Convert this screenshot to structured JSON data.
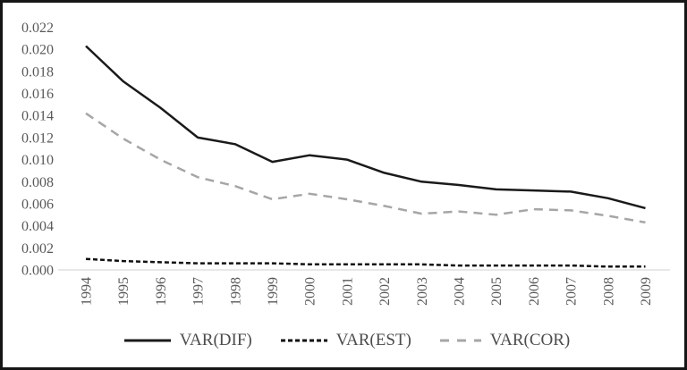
{
  "chart_data": {
    "type": "line",
    "title": "",
    "xlabel": "",
    "ylabel": "",
    "grid": false,
    "legend_position": "bottom",
    "categories": [
      "1994",
      "1995",
      "1996",
      "1997",
      "1998",
      "1999",
      "2000",
      "2001",
      "2002",
      "2003",
      "2004",
      "2005",
      "2006",
      "2007",
      "2008",
      "2009"
    ],
    "ylim": [
      0.0,
      0.022
    ],
    "y_tick_step": 0.002,
    "y_ticks": [
      "0.000",
      "0.002",
      "0.004",
      "0.006",
      "0.008",
      "0.010",
      "0.012",
      "0.014",
      "0.016",
      "0.018",
      "0.020",
      "0.022"
    ],
    "series": [
      {
        "name": "VAR(DIF)",
        "line_style": "solid",
        "color": "#1a1a1a",
        "values": [
          0.0203,
          0.0171,
          0.0147,
          0.012,
          0.0114,
          0.0098,
          0.0104,
          0.01,
          0.0088,
          0.008,
          0.0077,
          0.0073,
          0.0072,
          0.0071,
          0.0065,
          0.0056
        ]
      },
      {
        "name": "VAR(EST)",
        "line_style": "dense-dash",
        "color": "#111111",
        "values": [
          0.001,
          0.0008,
          0.0007,
          0.0006,
          0.0006,
          0.0006,
          0.0005,
          0.0005,
          0.0005,
          0.0005,
          0.0004,
          0.0004,
          0.0004,
          0.0004,
          0.0003,
          0.0003
        ]
      },
      {
        "name": "VAR(COR)",
        "line_style": "long-dash",
        "color": "#a6a6a6",
        "values": [
          0.0142,
          0.0119,
          0.01,
          0.0084,
          0.0076,
          0.0064,
          0.0069,
          0.0064,
          0.0058,
          0.0051,
          0.0053,
          0.005,
          0.0055,
          0.0054,
          0.0049,
          0.0043
        ]
      }
    ],
    "axis_line_color": "#d9d9d9"
  }
}
